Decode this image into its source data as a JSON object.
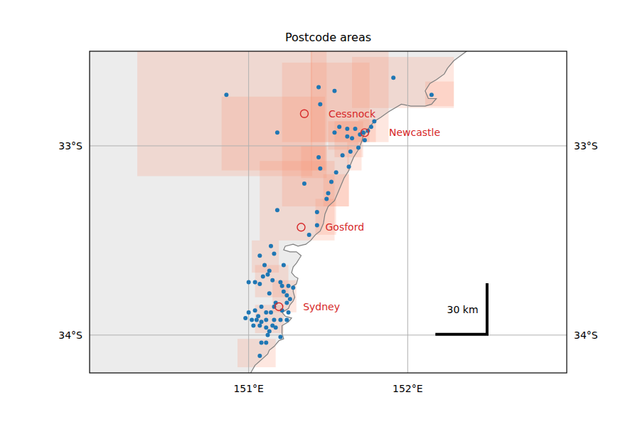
{
  "chart_data": {
    "type": "map",
    "title": "Postcode areas",
    "xlim": [
      150.0,
      153.0
    ],
    "ylim": [
      -34.2,
      -32.5
    ],
    "xticks": [
      {
        "value": 151,
        "label": "151°E"
      },
      {
        "value": 152,
        "label": "152°E"
      }
    ],
    "yticks": [
      {
        "value": -34,
        "label": "34°S"
      },
      {
        "value": -33,
        "label": "33°S"
      }
    ],
    "grid": true,
    "areas": {
      "color": "#fc9272",
      "rects": [
        [
          150.3,
          151.4,
          -33.16,
          -32.45
        ],
        [
          150.83,
          151.48,
          -33.13,
          -32.74
        ],
        [
          151.21,
          151.76,
          -32.98,
          -32.56
        ],
        [
          151.39,
          151.88,
          -32.98,
          -32.45
        ],
        [
          151.39,
          151.49,
          -33.13,
          -32.45
        ],
        [
          151.65,
          152.29,
          -32.8,
          -32.53
        ],
        [
          152.11,
          152.29,
          -32.79,
          -32.66
        ],
        [
          151.07,
          151.54,
          -33.5,
          -33.08
        ],
        [
          151.21,
          151.63,
          -33.32,
          -33.0
        ],
        [
          151.33,
          151.49,
          -33.17,
          -33.0
        ],
        [
          151.5,
          151.69,
          -33.02,
          -32.87
        ],
        [
          151.54,
          151.72,
          -33.06,
          -32.87
        ],
        [
          151.42,
          151.55,
          -33.47,
          -33.28
        ],
        [
          151.47,
          151.63,
          -33.32,
          -33.15
        ],
        [
          151.02,
          151.19,
          -33.67,
          -33.5
        ],
        [
          150.93,
          151.17,
          -34.17,
          -34.02
        ],
        [
          151.04,
          151.25,
          -33.8,
          -33.63
        ],
        [
          151.04,
          151.22,
          -33.99,
          -33.84
        ],
        [
          151.15,
          151.3,
          -33.88,
          -33.71
        ],
        [
          151.69,
          151.8,
          -32.98,
          -32.86
        ],
        [
          151.62,
          151.71,
          -33.13,
          -32.98
        ]
      ]
    },
    "points": {
      "color": "#1f77b4",
      "marker": "circle",
      "x": [
        150.86,
        151.91,
        152.15,
        151.44,
        151.54,
        151.45,
        151.18,
        151.57,
        151.62,
        151.67,
        151.54,
        151.62,
        151.65,
        151.7,
        151.72,
        151.75,
        151.77,
        151.79,
        151.73,
        151.69,
        151.59,
        151.64,
        151.44,
        151.45,
        151.63,
        151.55,
        151.35,
        151.52,
        151.5,
        151.49,
        151.43,
        151.43,
        151.38,
        151.18,
        151.07,
        151.14,
        151.16,
        151.22,
        151.1,
        151.13,
        151.12,
        151.09,
        151.0,
        151.04,
        151.07,
        151.15,
        151.2,
        151.21,
        151.22,
        151.25,
        151.28,
        151.24,
        151.26,
        151.24,
        151.17,
        151.13,
        151.16,
        151.21,
        151.25,
        151.08,
        151.11,
        151.14,
        151.04,
        151.0,
        150.98,
        151.02,
        151.05,
        151.06,
        151.08,
        151.11,
        151.16,
        151.2,
        151.24,
        151.03,
        151.07,
        151.11,
        151.13,
        151.17,
        151.12,
        151.15,
        151.2,
        151.08,
        151.11,
        151.07
      ],
      "y": [
        -32.73,
        -32.64,
        -32.73,
        -32.69,
        -32.71,
        -32.78,
        -32.93,
        -32.9,
        -32.91,
        -32.91,
        -32.93,
        -32.95,
        -32.96,
        -32.94,
        -32.93,
        -32.92,
        -32.9,
        -32.87,
        -32.97,
        -33.01,
        -33.05,
        -33.03,
        -33.06,
        -33.12,
        -33.11,
        -33.14,
        -33.2,
        -33.19,
        -33.25,
        -33.28,
        -33.35,
        -33.42,
        -33.47,
        -33.34,
        -33.58,
        -33.53,
        -33.57,
        -33.63,
        -33.63,
        -33.66,
        -33.68,
        -33.69,
        -33.72,
        -33.72,
        -33.73,
        -33.71,
        -33.72,
        -33.74,
        -33.77,
        -33.74,
        -33.75,
        -33.79,
        -33.81,
        -33.83,
        -33.83,
        -33.78,
        -33.85,
        -33.87,
        -33.88,
        -33.85,
        -33.88,
        -33.88,
        -33.87,
        -33.88,
        -33.91,
        -33.92,
        -33.92,
        -33.9,
        -33.93,
        -33.92,
        -33.92,
        -33.92,
        -33.92,
        -33.95,
        -33.95,
        -33.96,
        -33.98,
        -33.96,
        -34.0,
        -33.95,
        -34.01,
        -34.04,
        -34.04,
        -34.11
      ]
    },
    "cities": {
      "color": "#d62728",
      "marker": "open-circle",
      "labels": [
        "Cessnock",
        "Newcastle",
        "Gosford",
        "Sydney"
      ],
      "x": [
        151.35,
        151.73,
        151.33,
        151.19
      ],
      "y": [
        -32.83,
        -32.93,
        -33.43,
        -33.85
      ]
    },
    "coastline": {
      "color": "#7f7f7f",
      "x": [
        152.4,
        152.37,
        152.29,
        152.25,
        152.23,
        152.18,
        152.14,
        152.11,
        152.13,
        152.18,
        152.15,
        152.11,
        152.06,
        152.02,
        151.96,
        151.88,
        151.83,
        151.79,
        151.76,
        151.72,
        151.71,
        151.69,
        151.66,
        151.64,
        151.63,
        151.6,
        151.58,
        151.56,
        151.54,
        151.5,
        151.48,
        151.47,
        151.45,
        151.42,
        151.39,
        151.36,
        151.31,
        151.28,
        151.23,
        151.22,
        151.26,
        151.3,
        151.33,
        151.3,
        151.28,
        151.27,
        151.29,
        151.31,
        151.3,
        151.28,
        151.28,
        151.29,
        151.28,
        151.26,
        151.25,
        151.21,
        151.23,
        151.27,
        151.25,
        151.21,
        151.21,
        151.22,
        151.19,
        151.16,
        151.13,
        151.12,
        151.08,
        151.04,
        151.02,
        151.0
      ],
      "y": [
        -32.45,
        -32.5,
        -32.55,
        -32.59,
        -32.62,
        -32.65,
        -32.67,
        -32.71,
        -32.75,
        -32.75,
        -32.78,
        -32.79,
        -32.79,
        -32.79,
        -32.78,
        -32.82,
        -32.85,
        -32.87,
        -32.9,
        -32.95,
        -32.98,
        -33.02,
        -33.06,
        -33.1,
        -33.13,
        -33.17,
        -33.21,
        -33.25,
        -33.29,
        -33.32,
        -33.36,
        -33.41,
        -33.45,
        -33.47,
        -33.5,
        -33.52,
        -33.53,
        -33.52,
        -33.53,
        -33.55,
        -33.56,
        -33.56,
        -33.58,
        -33.62,
        -33.64,
        -33.67,
        -33.69,
        -33.7,
        -33.73,
        -33.74,
        -33.77,
        -33.8,
        -33.82,
        -33.84,
        -33.86,
        -33.88,
        -33.9,
        -33.91,
        -33.93,
        -33.95,
        -33.99,
        -34.02,
        -34.03,
        -34.06,
        -34.08,
        -34.1,
        -34.13,
        -34.16,
        -34.19,
        -34.22
      ]
    },
    "scale_bar": {
      "value": 30,
      "label": "30 km"
    }
  }
}
